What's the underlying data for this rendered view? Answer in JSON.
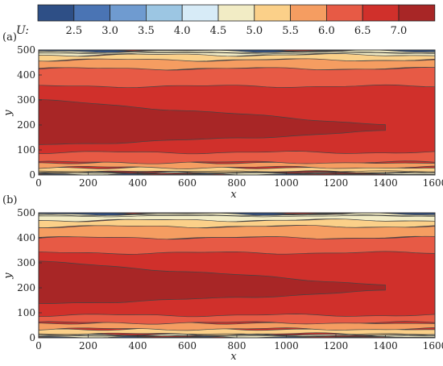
{
  "colorbar": {
    "label": "U:",
    "colors": [
      "#2e4f86",
      "#4a74b4",
      "#6f9bd0",
      "#9cc6e3",
      "#d7ebf7",
      "#f2ecc5",
      "#fbd089",
      "#f59d61",
      "#e75a45",
      "#d0302b",
      "#a82626"
    ],
    "ticks": [
      "2.5",
      "3.0",
      "3.5",
      "4.0",
      "4.5",
      "5.0",
      "5.5",
      "6.0",
      "6.5",
      "7.0"
    ]
  },
  "chart_data": [
    {
      "type": "heatmap",
      "panel_label": "(a)",
      "xlabel": "x",
      "ylabel": "y",
      "xlim": [
        0,
        1600
      ],
      "ylim": [
        0,
        500
      ],
      "xticks": [
        "0",
        "200",
        "400",
        "600",
        "800",
        "1000",
        "1200",
        "1400",
        "1600"
      ],
      "yticks": [
        "0",
        "100",
        "200",
        "300",
        "400",
        "500"
      ],
      "contour_levels": [
        2.5,
        3.0,
        3.5,
        4.0,
        4.5,
        5.0,
        5.5,
        6.0,
        6.5,
        7.0
      ],
      "bands": [
        {
          "level": "<2.5",
          "y_ranges": [
            [
              0,
              5
            ],
            [
              495,
              500
            ]
          ]
        },
        {
          "level": "4.5-5.0",
          "y_ranges": [
            [
              5,
              12
            ],
            [
              480,
              495
            ]
          ]
        },
        {
          "level": "5.0-5.5",
          "y_ranges": [
            [
              12,
              30
            ],
            [
              460,
              480
            ]
          ]
        },
        {
          "level": "5.5-6.0",
          "y_ranges": [
            [
              30,
              50
            ],
            [
              425,
              460
            ]
          ]
        },
        {
          "level": "6.0-6.5",
          "y_ranges": [
            [
              50,
              90
            ],
            [
              355,
              425
            ]
          ]
        },
        {
          "level": "6.5-7.0",
          "y_ranges": [
            [
              90,
              355
            ]
          ]
        },
        {
          "level": ">7.0",
          "y_ranges": [
            [
              120,
              300
            ]
          ],
          "x_range": [
            0,
            1400
          ]
        }
      ]
    },
    {
      "type": "heatmap",
      "panel_label": "(b)",
      "xlabel": "x",
      "ylabel": "y",
      "xlim": [
        0,
        1600
      ],
      "ylim": [
        0,
        500
      ],
      "xticks": [
        "0",
        "200",
        "400",
        "600",
        "800",
        "1000",
        "1200",
        "1400",
        "1600"
      ],
      "yticks": [
        "0",
        "100",
        "200",
        "300",
        "400",
        "500"
      ],
      "contour_levels": [
        2.5,
        3.0,
        3.5,
        4.0,
        4.5,
        5.0,
        5.5,
        6.0,
        6.5,
        7.0
      ],
      "bands": [
        {
          "level": "<2.5",
          "y_ranges": [
            [
              0,
              5
            ],
            [
              495,
              500
            ]
          ]
        },
        {
          "level": "4.5-5.0",
          "y_ranges": [
            [
              5,
              15
            ],
            [
              470,
              495
            ]
          ]
        },
        {
          "level": "5.0-5.5",
          "y_ranges": [
            [
              15,
              35
            ],
            [
              445,
              470
            ]
          ]
        },
        {
          "level": "5.5-6.0",
          "y_ranges": [
            [
              35,
              60
            ],
            [
              400,
              445
            ]
          ]
        },
        {
          "level": "6.0-6.5",
          "y_ranges": [
            [
              60,
              90
            ],
            [
              340,
              400
            ]
          ]
        },
        {
          "level": "6.5-7.0",
          "y_ranges": [
            [
              90,
              340
            ]
          ]
        },
        {
          "level": ">7.0",
          "y_ranges": [
            [
              135,
              305
            ]
          ],
          "x_range": [
            0,
            1400
          ]
        }
      ]
    }
  ]
}
